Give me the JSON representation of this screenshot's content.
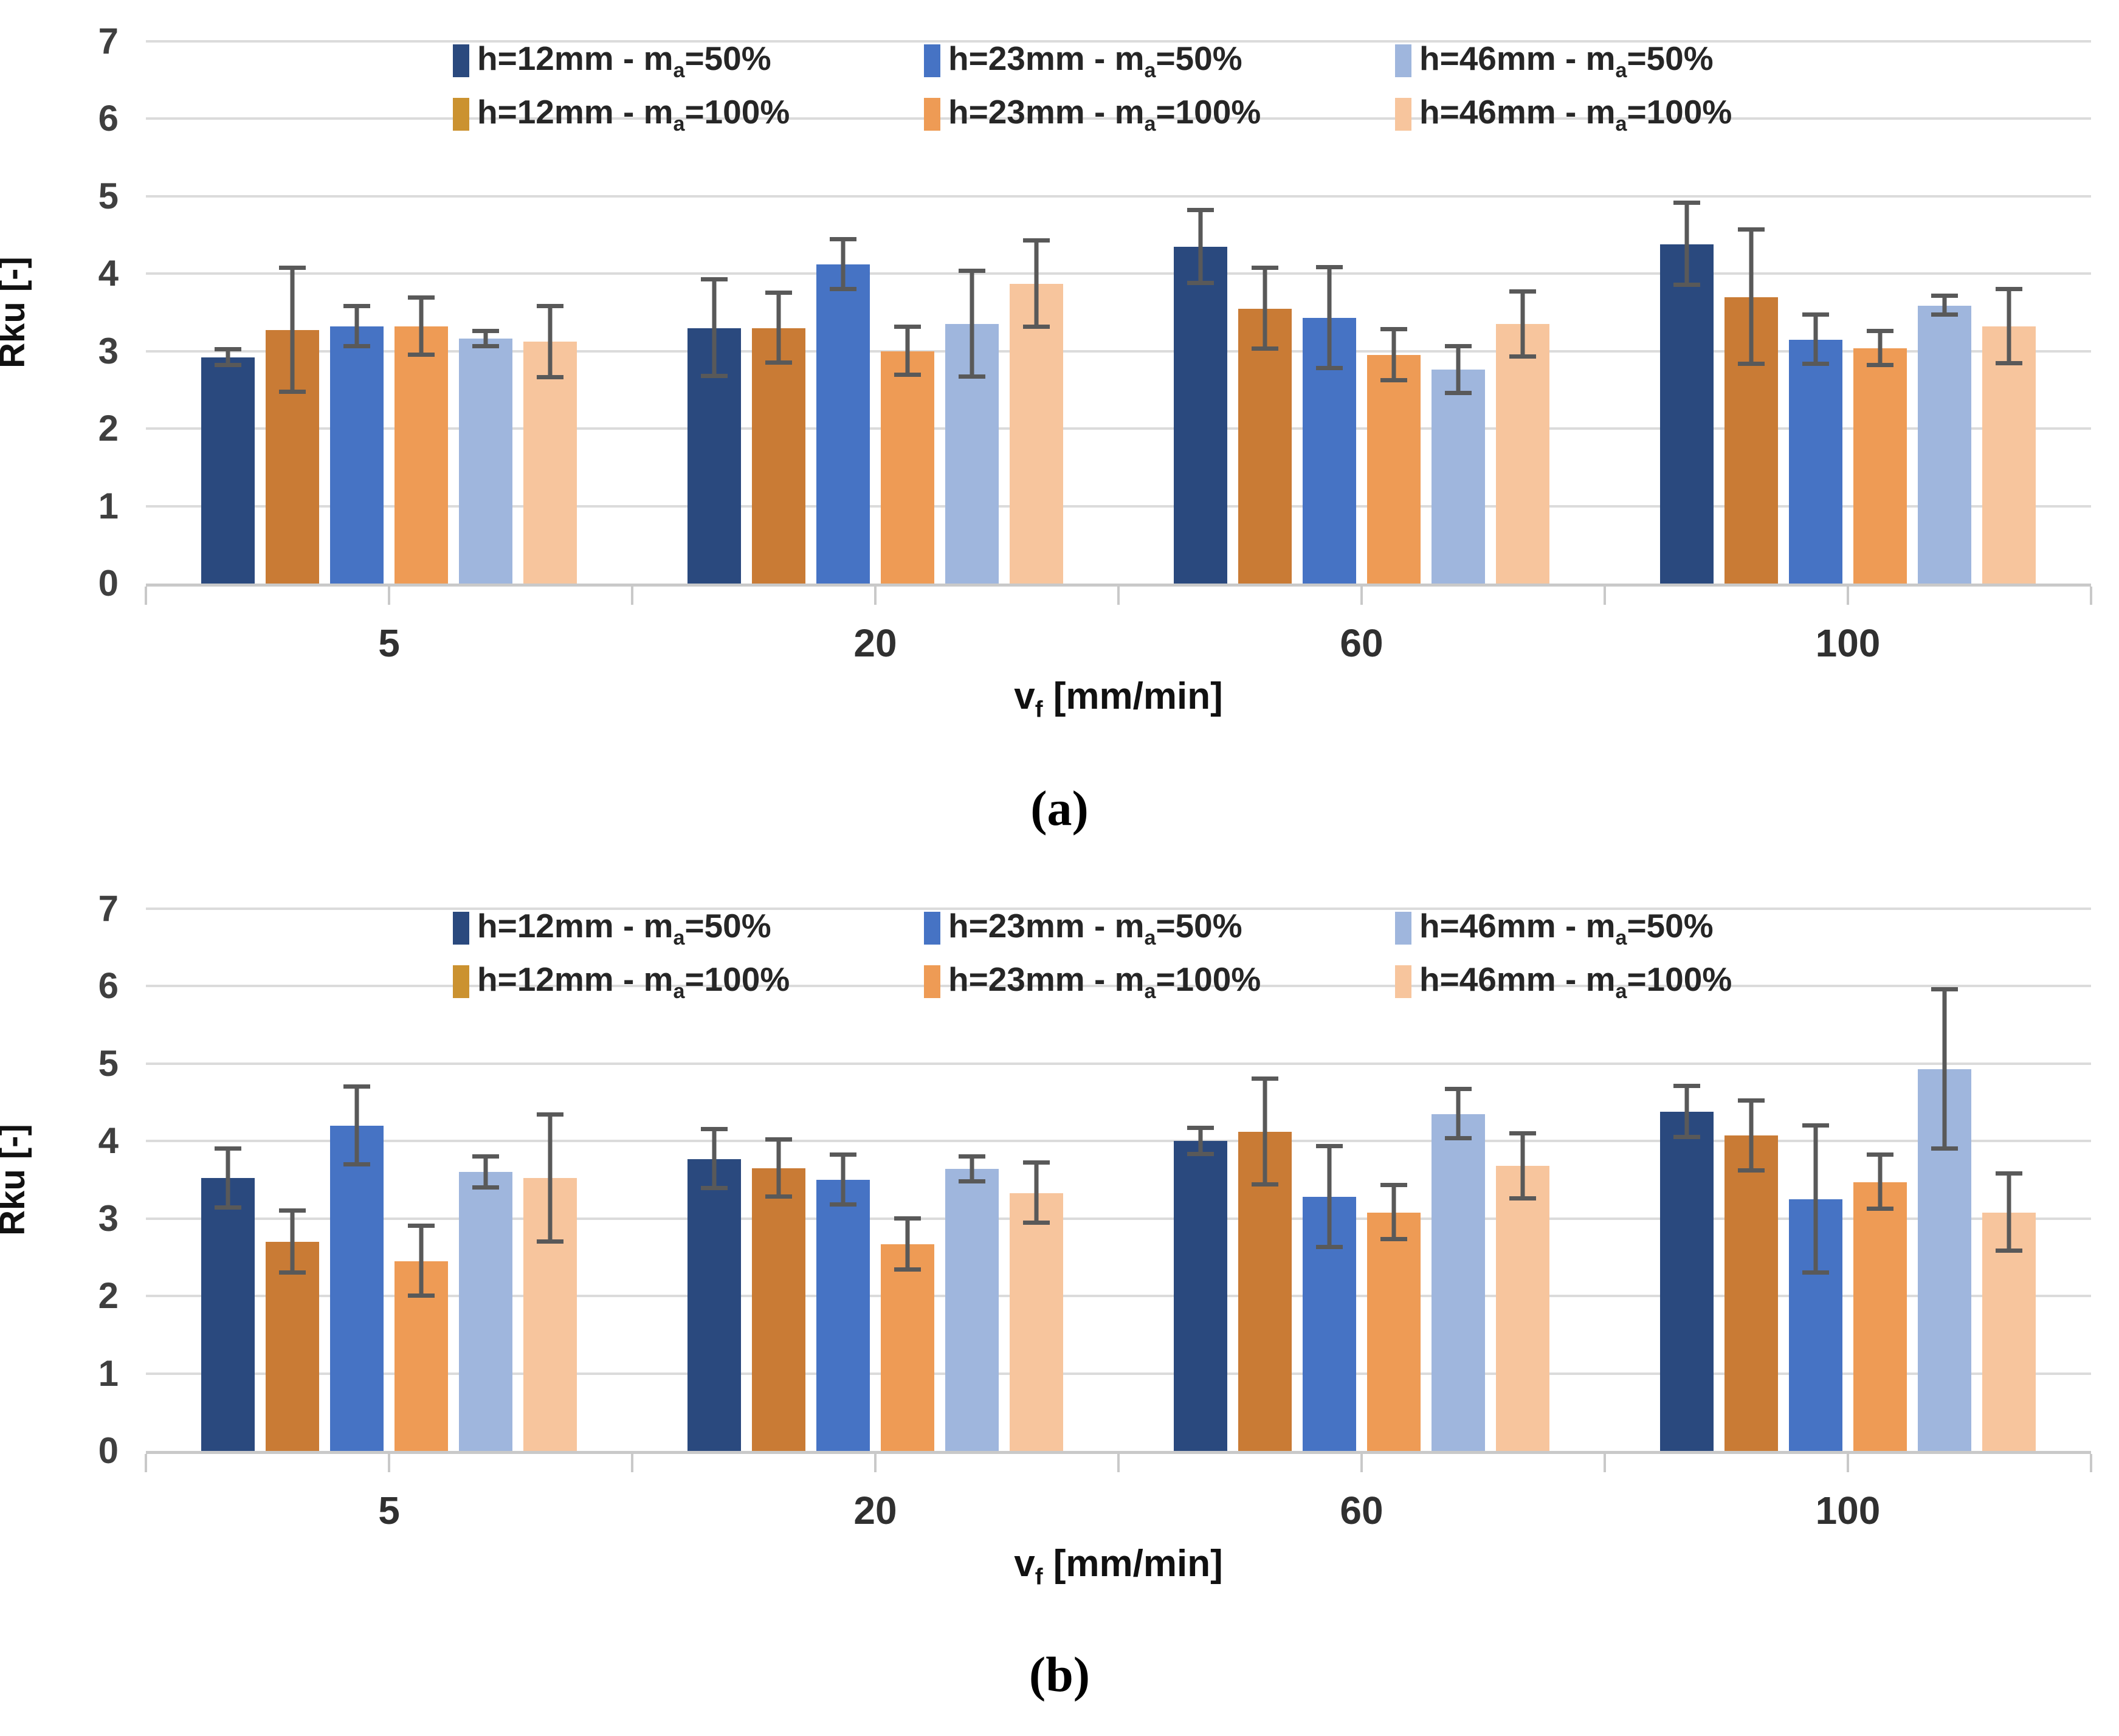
{
  "figure": {
    "captions": {
      "a": "(a)",
      "b": "(b)"
    },
    "colors": {
      "background": "#FFFFFF",
      "gridline": "#DBDBDB",
      "axis_line": "#C9C9C9",
      "error_bar": "#595959",
      "tick_text": "#3F3F3F",
      "legend_text": "#262626"
    }
  },
  "chart_data": [
    {
      "id": "a",
      "type": "bar",
      "title": "",
      "ylabel": "Rku [-]",
      "xlabel": {
        "pre": "v",
        "sub": "f",
        "post": " [mm/min]"
      },
      "ylim": [
        0,
        7
      ],
      "yticks": [
        0,
        1,
        2,
        3,
        4,
        5,
        6,
        7
      ],
      "grid": true,
      "legend_position": "top-center-two-rows",
      "legend_rows": [
        [
          0,
          2,
          4
        ],
        [
          1,
          3,
          5
        ]
      ],
      "categories": [
        "5",
        "20",
        "60",
        "100"
      ],
      "series": [
        {
          "key": "h12_ma50",
          "name": "h=12mm - ma=50%",
          "label_pre": "h=12mm - m",
          "label_sub": "a",
          "label_post": "=50%",
          "color": "#2A497E",
          "swatch": "#2A497E",
          "values": [
            2.92,
            3.3,
            4.35,
            4.38
          ],
          "errors": [
            0.1,
            0.62,
            0.47,
            0.53
          ]
        },
        {
          "key": "h12_ma100",
          "name": "h=12mm - ma=100%",
          "label_pre": "h=12mm - m",
          "label_sub": "a",
          "label_post": "=100%",
          "color": "#C97B35",
          "swatch": "#CB9230",
          "values": [
            3.27,
            3.3,
            3.55,
            3.7
          ],
          "errors": [
            0.8,
            0.45,
            0.52,
            0.87
          ]
        },
        {
          "key": "h23_ma50",
          "name": "h=23mm - ma=50%",
          "label_pre": "h=23mm - m",
          "label_sub": "a",
          "label_post": "=50%",
          "color": "#4673C4",
          "swatch": "#4673C4",
          "values": [
            3.32,
            4.12,
            3.43,
            3.15
          ],
          "errors": [
            0.26,
            0.32,
            0.65,
            0.32
          ]
        },
        {
          "key": "h23_ma100",
          "name": "h=23mm - ma=100%",
          "label_pre": "h=23mm - m",
          "label_sub": "a",
          "label_post": "=100%",
          "color": "#EE9B55",
          "swatch": "#EE9B55",
          "values": [
            3.32,
            3.0,
            2.95,
            3.04
          ],
          "errors": [
            0.37,
            0.31,
            0.33,
            0.22
          ]
        },
        {
          "key": "h46_ma50",
          "name": "h=46mm - ma=50%",
          "label_pre": "h=46mm - m",
          "label_sub": "a",
          "label_post": "=50%",
          "color": "#9FB6DD",
          "swatch": "#9FB6DD",
          "values": [
            3.16,
            3.35,
            2.76,
            3.59
          ],
          "errors": [
            0.1,
            0.68,
            0.3,
            0.12
          ]
        },
        {
          "key": "h46_ma100",
          "name": "h=46mm - ma=100%",
          "label_pre": "h=46mm - m",
          "label_sub": "a",
          "label_post": "=100%",
          "color": "#F7C59D",
          "swatch": "#F7C59D",
          "values": [
            3.12,
            3.87,
            3.35,
            3.32
          ],
          "errors": [
            0.46,
            0.56,
            0.42,
            0.48
          ]
        }
      ]
    },
    {
      "id": "b",
      "type": "bar",
      "title": "",
      "ylabel": "Rku [-]",
      "xlabel": {
        "pre": "v",
        "sub": "f",
        "post": " [mm/min]"
      },
      "ylim": [
        0,
        7
      ],
      "yticks": [
        0,
        1,
        2,
        3,
        4,
        5,
        6,
        7
      ],
      "grid": true,
      "legend_position": "top-center-two-rows",
      "legend_rows": [
        [
          0,
          2,
          4
        ],
        [
          1,
          3,
          5
        ]
      ],
      "categories": [
        "5",
        "20",
        "60",
        "100"
      ],
      "series": [
        {
          "key": "h12_ma50",
          "name": "h=12mm - ma=50%",
          "label_pre": "h=12mm - m",
          "label_sub": "a",
          "label_post": "=50%",
          "color": "#2A497E",
          "swatch": "#2A497E",
          "values": [
            3.52,
            3.77,
            4.0,
            4.38
          ],
          "errors": [
            0.38,
            0.38,
            0.17,
            0.33
          ]
        },
        {
          "key": "h12_ma100",
          "name": "h=12mm - ma=100%",
          "label_pre": "h=12mm - m",
          "label_sub": "a",
          "label_post": "=100%",
          "color": "#C97B35",
          "swatch": "#CB9230",
          "values": [
            2.7,
            3.65,
            4.12,
            4.07
          ],
          "errors": [
            0.4,
            0.37,
            0.68,
            0.45
          ]
        },
        {
          "key": "h23_ma50",
          "name": "h=23mm - ma=50%",
          "label_pre": "h=23mm - m",
          "label_sub": "a",
          "label_post": "=50%",
          "color": "#4673C4",
          "swatch": "#4673C4",
          "values": [
            4.2,
            3.5,
            3.28,
            3.25
          ],
          "errors": [
            0.5,
            0.32,
            0.65,
            0.95
          ]
        },
        {
          "key": "h23_ma100",
          "name": "h=23mm - ma=100%",
          "label_pre": "h=23mm - m",
          "label_sub": "a",
          "label_post": "=100%",
          "color": "#EE9B55",
          "swatch": "#EE9B55",
          "values": [
            2.45,
            2.67,
            3.08,
            3.47
          ],
          "errors": [
            0.45,
            0.33,
            0.35,
            0.35
          ]
        },
        {
          "key": "h46_ma50",
          "name": "h=46mm - ma=50%",
          "label_pre": "h=46mm - m",
          "label_sub": "a",
          "label_post": "=50%",
          "color": "#9FB6DD",
          "swatch": "#9FB6DD",
          "values": [
            3.6,
            3.64,
            4.35,
            4.93
          ],
          "errors": [
            0.2,
            0.16,
            0.32,
            1.03
          ]
        },
        {
          "key": "h46_ma100",
          "name": "h=46mm - ma=100%",
          "label_pre": "h=46mm - m",
          "label_sub": "a",
          "label_post": "=100%",
          "color": "#F7C59D",
          "swatch": "#F7C59D",
          "values": [
            3.52,
            3.33,
            3.68,
            3.08
          ],
          "errors": [
            0.82,
            0.39,
            0.42,
            0.5
          ]
        }
      ]
    }
  ]
}
